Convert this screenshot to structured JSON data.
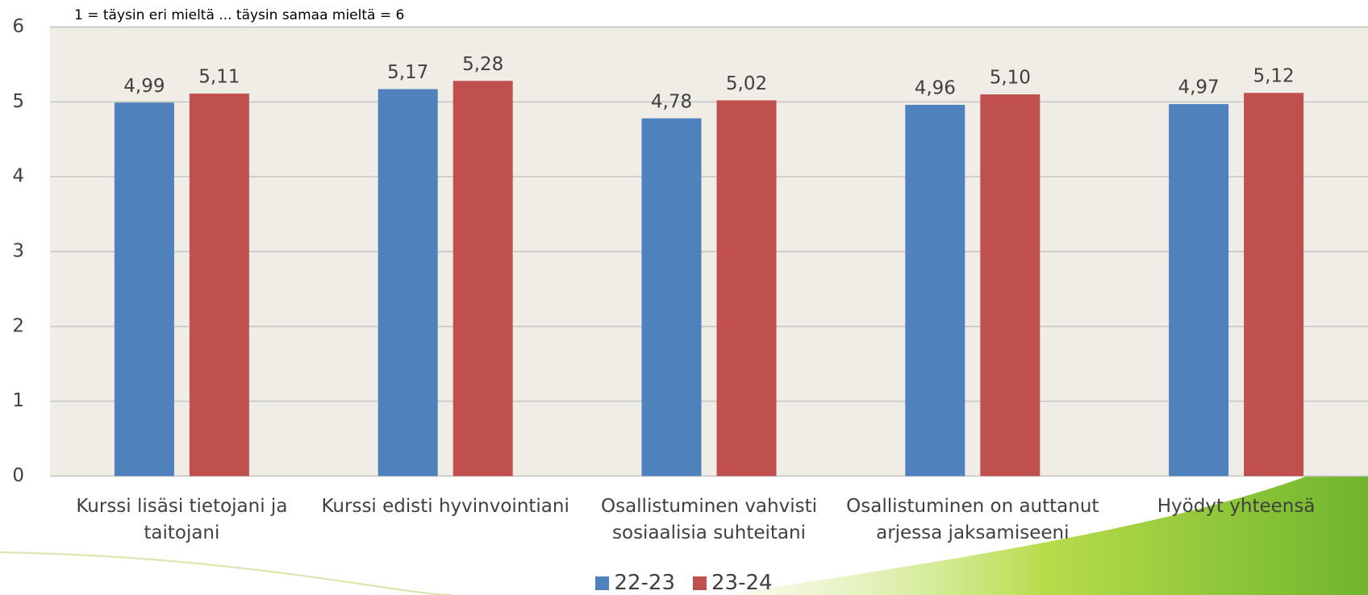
{
  "chart_data": {
    "type": "bar",
    "subtitle": "1 = täysin eri mieltä ... täysin samaa mieltä = 6",
    "categories": [
      "Kurssi lisäsi tietojani ja taitojani",
      "Kurssi edisti hyvinvointiani",
      "Osallistuminen vahvisti sosiaalisia suhteitani",
      "Osallistuminen on auttanut arjessa jaksamiseeni",
      "Hyödyt yhteensä"
    ],
    "series": [
      {
        "name": "22-23",
        "color": "#4f81bd",
        "values": [
          4.99,
          5.17,
          4.78,
          4.96,
          4.97
        ],
        "value_labels": [
          "4,99",
          "5,17",
          "4,78",
          "4,96",
          "4,97"
        ]
      },
      {
        "name": "23-24",
        "color": "#c0504d",
        "values": [
          5.11,
          5.28,
          5.02,
          5.1,
          5.12
        ],
        "value_labels": [
          "5,11",
          "5,28",
          "5,02",
          "5,10",
          "5,12"
        ]
      }
    ],
    "ylim": [
      0,
      6
    ],
    "yticks": [
      0,
      1,
      2,
      3,
      4,
      5,
      6
    ],
    "grid": true,
    "legend": "bottom"
  }
}
